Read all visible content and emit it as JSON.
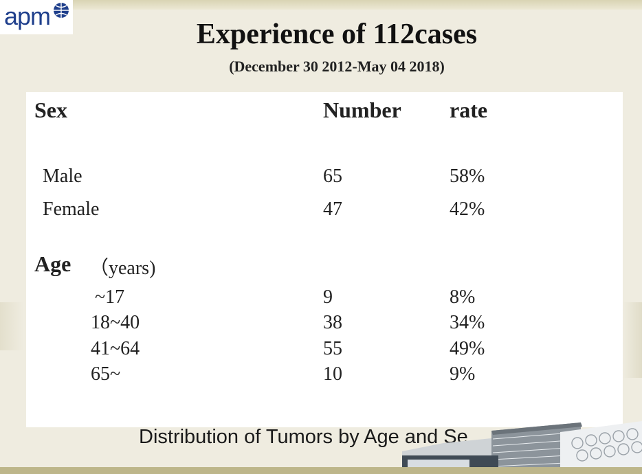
{
  "logo": {
    "text": "apm"
  },
  "slide": {
    "title": "Experience of  112cases",
    "subtitle": "(December 30 2012-May 04 2018)",
    "headers": {
      "category": "Sex",
      "number": "Number",
      "rate": "rate"
    },
    "sex_rows": [
      {
        "label": "Male",
        "number": "65",
        "rate": "58%"
      },
      {
        "label": "Female",
        "number": "47",
        "rate": "42%"
      }
    ],
    "age_heading": "Age",
    "age_unit": "（years)",
    "age_rows": [
      {
        "label": "~17",
        "number": "9",
        "rate": "8%"
      },
      {
        "label": "18~40",
        "number": "38",
        "rate": "34%"
      },
      {
        "label": "41~64",
        "number": "55",
        "rate": "49%"
      },
      {
        "label": "65~",
        "number": "10",
        "rate": "9%"
      }
    ],
    "caption": "Distribution of Tumors by Age and Se"
  },
  "colors": {
    "background": "#efece0",
    "panel": "#ffffff",
    "logo_blue": "#1f3f8c",
    "band": "#bdb68a"
  }
}
